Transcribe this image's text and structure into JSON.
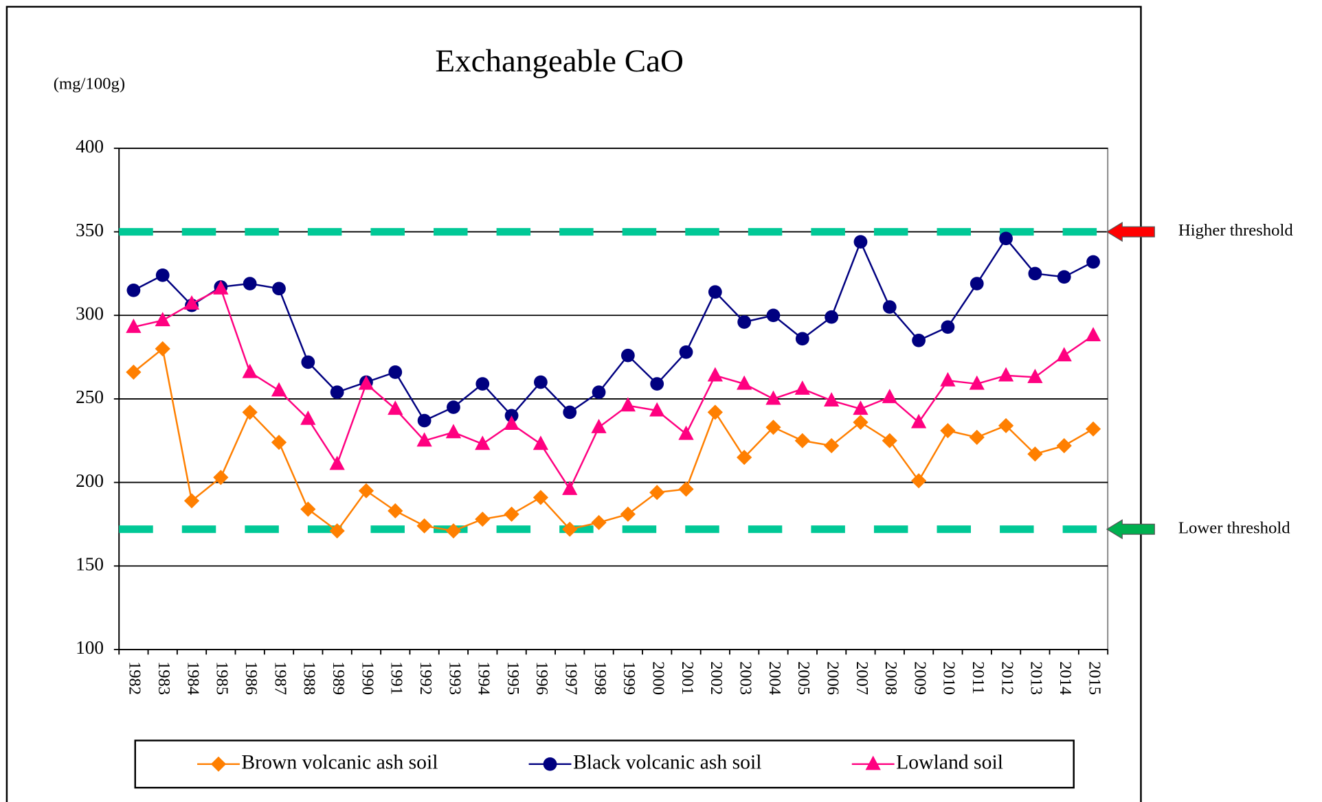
{
  "chart_data": {
    "type": "line",
    "title": "Exchangeable CaO",
    "y_label": "(mg/100g)",
    "categories": [
      "1982",
      "1983",
      "1984",
      "1985",
      "1986",
      "1987",
      "1988",
      "1989",
      "1990",
      "1991",
      "1992",
      "1993",
      "1994",
      "1995",
      "1996",
      "1997",
      "1998",
      "1999",
      "2000",
      "2001",
      "2002",
      "2003",
      "2004",
      "2005",
      "2006",
      "2007",
      "2008",
      "2009",
      "2010",
      "2011",
      "2012",
      "2013",
      "2014",
      "2015"
    ],
    "series": [
      {
        "name": "Brown volcanic ash soil",
        "color": "#ff7f00",
        "marker": "diamond",
        "values": [
          266,
          280,
          189,
          203,
          242,
          224,
          184,
          171,
          195,
          183,
          174,
          171,
          178,
          181,
          191,
          172,
          176,
          181,
          194,
          196,
          242,
          215,
          233,
          225,
          222,
          236,
          225,
          201,
          231,
          227,
          234,
          217,
          222,
          232
        ]
      },
      {
        "name": "Black volcanic ash soil",
        "color": "#000080",
        "marker": "circle",
        "values": [
          315,
          324,
          306,
          317,
          319,
          316,
          272,
          254,
          260,
          266,
          237,
          245,
          259,
          240,
          260,
          242,
          254,
          276,
          259,
          278,
          314,
          296,
          300,
          286,
          299,
          344,
          305,
          285,
          293,
          319,
          346,
          325,
          323,
          332
        ]
      },
      {
        "name": "Lowland soil",
        "color": "#ff0080",
        "marker": "triangle",
        "values": [
          293,
          297,
          307,
          316,
          266,
          255,
          238,
          211,
          259,
          244,
          225,
          230,
          223,
          235,
          223,
          196,
          233,
          246,
          243,
          229,
          264,
          259,
          250,
          256,
          249,
          244,
          251,
          236,
          261,
          259,
          264,
          263,
          276,
          288
        ]
      }
    ],
    "thresholds": [
      {
        "label": "Higher threshold",
        "value": 350,
        "line_color": "#00c896",
        "arrow_color": "#ff0000",
        "label_color": "#ff0000"
      },
      {
        "label": "Lower threshold",
        "value": 172,
        "line_color": "#00c896",
        "arrow_color": "#00b050",
        "label_color": "#3333cc"
      }
    ],
    "ylim": [
      100,
      400
    ],
    "yticks": [
      100,
      150,
      200,
      250,
      300,
      350,
      400
    ],
    "grid": true,
    "legend": "bottom"
  }
}
